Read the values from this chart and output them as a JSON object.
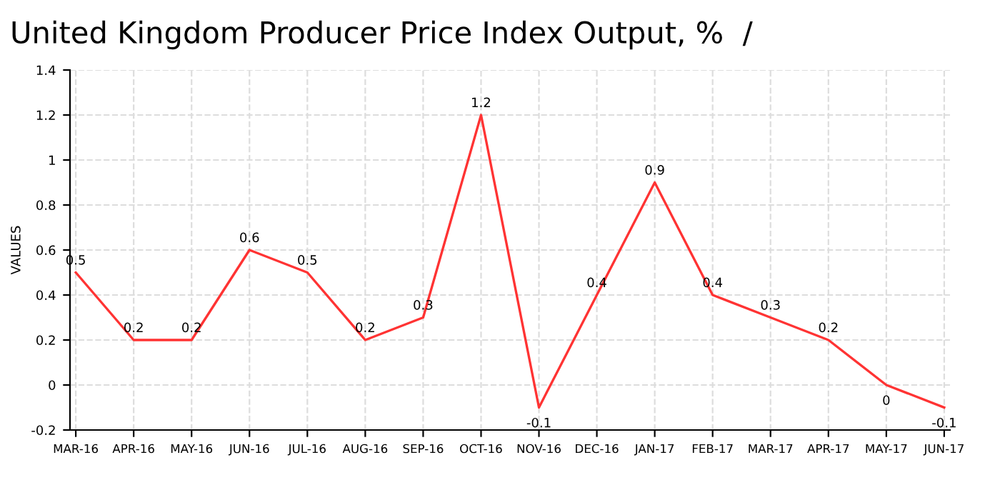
{
  "chart_data": {
    "type": "line",
    "title": "United Kingdom Producer Price Index Output, %  /",
    "ylabel": "VALUES",
    "categories": [
      "MAR-16",
      "APR-16",
      "MAY-16",
      "JUN-16",
      "JUL-16",
      "AUG-16",
      "SEP-16",
      "OCT-16",
      "NOV-16",
      "DEC-16",
      "JAN-17",
      "FEB-17",
      "MAR-17",
      "APR-17",
      "MAY-17",
      "JUN-17"
    ],
    "series": [
      {
        "color": "#ff3333",
        "values": [
          0.5,
          0.2,
          0.2,
          0.6,
          0.5,
          0.2,
          0.3,
          1.2,
          -0.1,
          0.4,
          0.9,
          0.4,
          0.3,
          0.2,
          0,
          -0.1
        ]
      }
    ],
    "ylim": [
      -0.2,
      1.4
    ],
    "yticks": [
      -0.2,
      0,
      0.2,
      0.4,
      0.6,
      0.8,
      1,
      1.2,
      1.4
    ],
    "grid": true,
    "data_labels": true,
    "marker": "none",
    "line_style": "solid",
    "legend": false
  }
}
